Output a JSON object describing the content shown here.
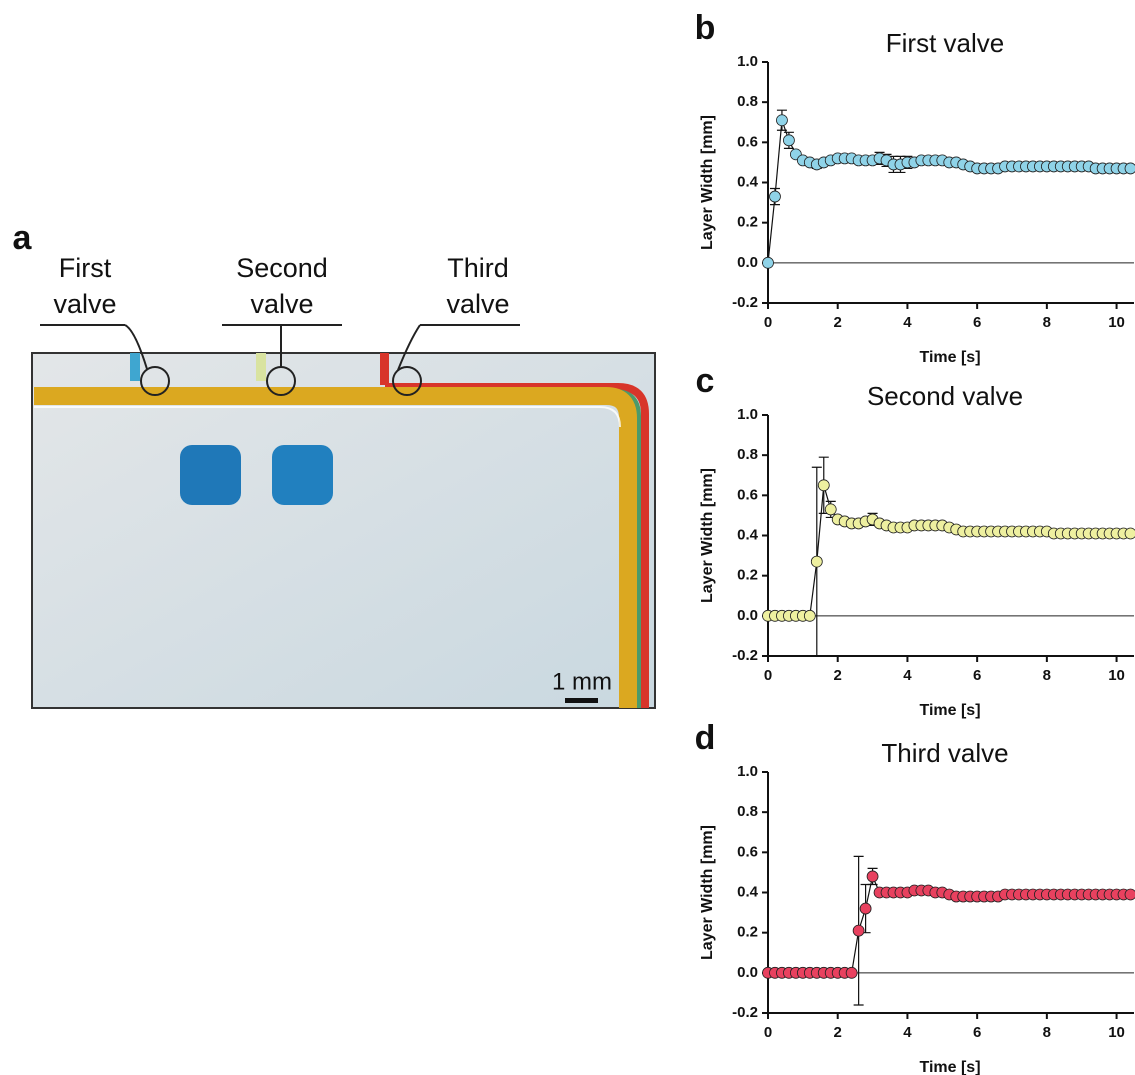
{
  "photo": {
    "panel": "a",
    "labels": [
      [
        "First",
        "valve"
      ],
      [
        "Second",
        "valve"
      ],
      [
        "Third",
        "valve"
      ]
    ],
    "scale_bar": "1 mm"
  },
  "chart_data": [
    {
      "type": "line",
      "panel": "b",
      "title": "First valve",
      "x_label": "Time [s]",
      "y_label": "Layer Width [mm]",
      "color": "#8fd3e8",
      "markers": true,
      "x": [
        0,
        0.2,
        0.4,
        0.6,
        0.8,
        1,
        1.2,
        1.4,
        1.6,
        1.8,
        2,
        2.2,
        2.4,
        2.6,
        2.8,
        3,
        3.2,
        3.4,
        3.6,
        3.8,
        4,
        4.2,
        4.4,
        4.6,
        4.8,
        5,
        5.2,
        5.4,
        5.6,
        5.8,
        6,
        6.2,
        6.4,
        6.6,
        6.8,
        7,
        7.2,
        7.4,
        7.6,
        7.8,
        8,
        8.2,
        8.4,
        8.6,
        8.8,
        9,
        9.2,
        9.4,
        9.6,
        9.8,
        10,
        10.2,
        10.4
      ],
      "values": [
        0,
        0.33,
        0.71,
        0.61,
        0.54,
        0.51,
        0.5,
        0.49,
        0.5,
        0.51,
        0.52,
        0.52,
        0.52,
        0.51,
        0.51,
        0.51,
        0.52,
        0.51,
        0.49,
        0.49,
        0.5,
        0.5,
        0.51,
        0.51,
        0.51,
        0.51,
        0.5,
        0.5,
        0.49,
        0.48,
        0.47,
        0.47,
        0.47,
        0.47,
        0.48,
        0.48,
        0.48,
        0.48,
        0.48,
        0.48,
        0.48,
        0.48,
        0.48,
        0.48,
        0.48,
        0.48,
        0.48,
        0.47,
        0.47,
        0.47,
        0.47,
        0.47,
        0.47
      ],
      "errors": [
        null,
        0.04,
        0.05,
        0.04,
        null,
        null,
        null,
        0.02,
        null,
        null,
        null,
        null,
        null,
        null,
        null,
        null,
        0.03,
        0.03,
        0.04,
        0.04,
        0.03,
        null,
        null,
        null,
        null,
        null,
        null,
        null,
        null,
        null,
        null,
        null,
        null,
        null,
        null,
        null,
        null,
        null,
        null,
        null,
        null,
        null,
        null,
        null,
        null,
        null,
        null,
        null,
        null,
        null,
        null,
        null,
        null
      ],
      "xlim": [
        0,
        10.5
      ],
      "ylim": [
        -0.2,
        1
      ],
      "xticks": [
        0,
        2,
        4,
        6,
        8,
        10
      ],
      "yticks": [
        -0.2,
        {
          "value": 0,
          "label": "0.0"
        },
        0.2,
        0.4,
        0.6,
        0.8,
        {
          "value": 1,
          "label": "1.0"
        }
      ]
    },
    {
      "type": "line",
      "panel": "c",
      "title": "Second valve",
      "x_label": "Time [s]",
      "y_label": "Layer Width [mm]",
      "color": "#eef0a0",
      "markers": true,
      "x": [
        0,
        0.2,
        0.4,
        0.6,
        0.8,
        1,
        1.2,
        1.4,
        1.6,
        1.8,
        2,
        2.2,
        2.4,
        2.6,
        2.8,
        3,
        3.2,
        3.4,
        3.6,
        3.8,
        4,
        4.2,
        4.4,
        4.6,
        4.8,
        5,
        5.2,
        5.4,
        5.6,
        5.8,
        6,
        6.2,
        6.4,
        6.6,
        6.8,
        7,
        7.2,
        7.4,
        7.6,
        7.8,
        8,
        8.2,
        8.4,
        8.6,
        8.8,
        9,
        9.2,
        9.4,
        9.6,
        9.8,
        10,
        10.2,
        10.4
      ],
      "values": [
        0,
        0,
        0,
        0,
        0,
        0,
        0,
        0.27,
        0.65,
        0.53,
        0.48,
        0.47,
        0.46,
        0.46,
        0.47,
        0.48,
        0.46,
        0.45,
        0.44,
        0.44,
        0.44,
        0.45,
        0.45,
        0.45,
        0.45,
        0.45,
        0.44,
        0.43,
        0.42,
        0.42,
        0.42,
        0.42,
        0.42,
        0.42,
        0.42,
        0.42,
        0.42,
        0.42,
        0.42,
        0.42,
        0.42,
        0.41,
        0.41,
        0.41,
        0.41,
        0.41,
        0.41,
        0.41,
        0.41,
        0.41,
        0.41,
        0.41,
        0.41
      ],
      "errors": [
        null,
        null,
        null,
        null,
        null,
        null,
        null,
        0.47,
        0.14,
        0.04,
        null,
        null,
        null,
        null,
        null,
        0.03,
        null,
        null,
        null,
        0.02,
        null,
        null,
        0.02,
        null,
        null,
        null,
        null,
        null,
        null,
        null,
        null,
        null,
        null,
        null,
        null,
        null,
        null,
        null,
        null,
        null,
        null,
        null,
        null,
        null,
        null,
        null,
        null,
        null,
        null,
        null,
        null,
        null,
        null
      ],
      "xlim": [
        0,
        10.5
      ],
      "ylim": [
        -0.2,
        1
      ],
      "xticks": [
        0,
        2,
        4,
        6,
        8,
        10
      ],
      "yticks": [
        -0.2,
        {
          "value": 0,
          "label": "0.0"
        },
        0.2,
        0.4,
        0.6,
        0.8,
        {
          "value": 1,
          "label": "1.0"
        }
      ]
    },
    {
      "type": "line",
      "panel": "d",
      "title": "Third valve",
      "x_label": "Time [s]",
      "y_label": "Layer Width [mm]",
      "color": "#e8415f",
      "markers": true,
      "x": [
        0,
        0.2,
        0.4,
        0.6,
        0.8,
        1,
        1.2,
        1.4,
        1.6,
        1.8,
        2,
        2.2,
        2.4,
        2.6,
        2.8,
        3,
        3.2,
        3.4,
        3.6,
        3.8,
        4,
        4.2,
        4.4,
        4.6,
        4.8,
        5,
        5.2,
        5.4,
        5.6,
        5.8,
        6,
        6.2,
        6.4,
        6.6,
        6.8,
        7,
        7.2,
        7.4,
        7.6,
        7.8,
        8,
        8.2,
        8.4,
        8.6,
        8.8,
        9,
        9.2,
        9.4,
        9.6,
        9.8,
        10,
        10.2,
        10.4
      ],
      "values": [
        0,
        0,
        0,
        0,
        0,
        0,
        0,
        0,
        0,
        0,
        0,
        0,
        0,
        0.21,
        0.32,
        0.48,
        0.4,
        0.4,
        0.4,
        0.4,
        0.4,
        0.41,
        0.41,
        0.41,
        0.4,
        0.4,
        0.39,
        0.38,
        0.38,
        0.38,
        0.38,
        0.38,
        0.38,
        0.38,
        0.39,
        0.39,
        0.39,
        0.39,
        0.39,
        0.39,
        0.39,
        0.39,
        0.39,
        0.39,
        0.39,
        0.39,
        0.39,
        0.39,
        0.39,
        0.39,
        0.39,
        0.39,
        0.39
      ],
      "errors": [
        null,
        null,
        null,
        null,
        null,
        null,
        null,
        null,
        null,
        null,
        null,
        null,
        null,
        0.37,
        0.12,
        0.04,
        null,
        null,
        null,
        null,
        null,
        null,
        null,
        null,
        null,
        null,
        null,
        null,
        null,
        null,
        null,
        null,
        null,
        null,
        null,
        null,
        null,
        null,
        null,
        null,
        null,
        null,
        null,
        null,
        null,
        null,
        null,
        null,
        null,
        null,
        null,
        null,
        null
      ],
      "xlim": [
        0,
        10.5
      ],
      "ylim": [
        -0.2,
        1
      ],
      "xticks": [
        0,
        2,
        4,
        6,
        8,
        10
      ],
      "yticks": [
        -0.2,
        {
          "value": 0,
          "label": "0.0"
        },
        0.2,
        0.4,
        0.6,
        0.8,
        {
          "value": 1,
          "label": "1.0"
        }
      ]
    }
  ]
}
